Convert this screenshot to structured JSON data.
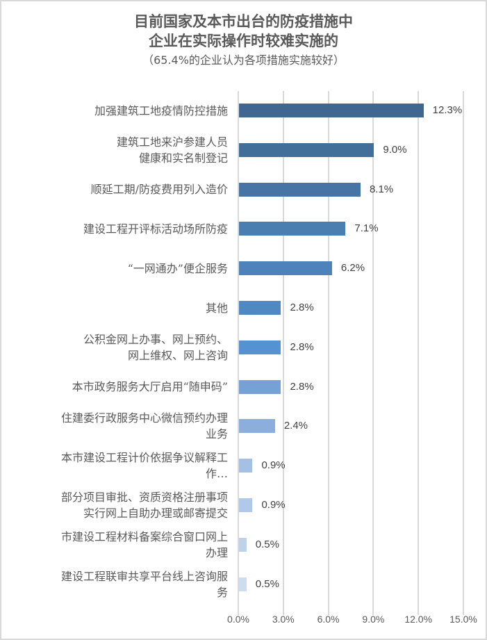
{
  "chart_data": {
    "type": "bar",
    "orientation": "horizontal",
    "title": "目前国家及本市出台的防疫措施中企业在实际操作时较难实施的",
    "title_lines": [
      "目前国家及本市出台的防疫措施中",
      "企业在实际操作时较难实施的"
    ],
    "subtitle": "（65.4%的企业认为各项措施实施较好）",
    "xlabel": "",
    "ylabel": "",
    "xlim": [
      0,
      15
    ],
    "x_ticks": [
      "0.0%",
      "3.0%",
      "6.0%",
      "9.0%",
      "12.0%",
      "15.0%"
    ],
    "grid": true,
    "legend": null,
    "categories": [
      "加强建筑工地疫情防控措施",
      "建筑工地来沪参建人员健康和实名制登记",
      "顺延工期/防疫费用列入造价",
      "建设工程开评标活动场所防疫",
      "“一网通办”便企服务",
      "其他",
      "公积金网上办事、网上预约、网上维权、网上咨询",
      "本市政务服务大厅启用“随申码”",
      "住建委行政服务中心微信预约办理业务",
      "本市建设工程计价依据争议解释工作…",
      "部分项目审批、资质资格注册事项实行网上自助办理或邮寄提交",
      "市建设工程材料备案综合窗口网上办理",
      "建设工程联审共享平台线上咨询服务"
    ],
    "values": [
      12.3,
      9.0,
      8.1,
      7.1,
      6.2,
      2.8,
      2.8,
      2.8,
      2.4,
      0.9,
      0.9,
      0.5,
      0.5
    ],
    "value_labels": [
      "12.3%",
      "9.0%",
      "8.1%",
      "7.1%",
      "6.2%",
      "2.8%",
      "2.8%",
      "2.8%",
      "2.4%",
      "0.9%",
      "0.9%",
      "0.5%",
      "0.5%"
    ],
    "category_label_lines": [
      [
        "加强建筑工地疫情防控措施"
      ],
      [
        "建筑工地来沪参建人员",
        "健康和实名制登记"
      ],
      [
        "顺延工期/防疫费用列入造价"
      ],
      [
        "建设工程开评标活动场所防疫"
      ],
      [
        "“一网通办”便企服务"
      ],
      [
        "其他"
      ],
      [
        "公积金网上办事、网上预约、",
        "网上维权、网上咨询"
      ],
      [
        "本市政务服务大厅启用“随申码”"
      ],
      [
        "住建委行政服务中心微信预约办理",
        "业务"
      ],
      [
        "本市建设工程计价依据争议解释工",
        "作…"
      ],
      [
        "部分项目审批、资质资格注册事项",
        "实行网上自助办理或邮寄提交"
      ],
      [
        "市建设工程材料备案综合窗口网上",
        "办理"
      ],
      [
        "建设工程联审共享平台线上咨询服",
        "务"
      ]
    ],
    "bar_colors": [
      "#3f6790",
      "#426f9a",
      "#4675a5",
      "#4a7db0",
      "#4d83ba",
      "#5089c2",
      "#5592d1",
      "#76a1d6",
      "#8caedd",
      "#a4c0e4",
      "#b1c9e8",
      "#bfd2ec",
      "#cfdcf0"
    ]
  },
  "colors": {
    "grid": "#d9d9d9",
    "text": "#595959",
    "value_text": "#404040",
    "border": "#d9d9d9"
  }
}
